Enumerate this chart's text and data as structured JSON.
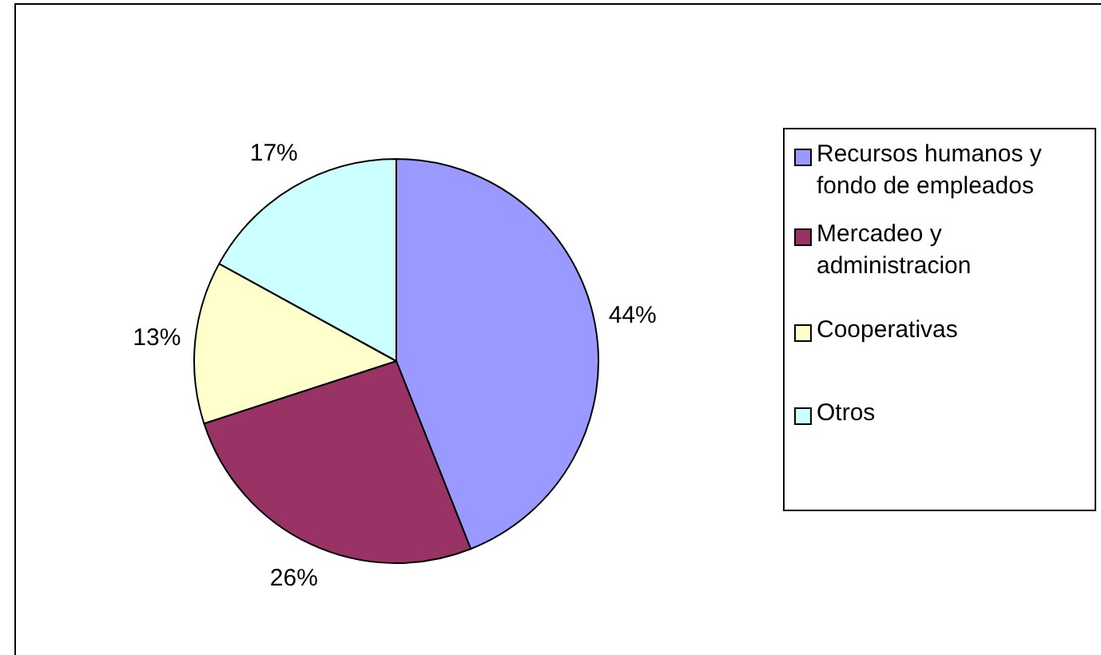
{
  "chart_data": {
    "type": "pie",
    "categories": [
      "Recursos humanos y fondo de empleados",
      "Mercadeo y administracion",
      "Cooperativas",
      "Otros"
    ],
    "values": [
      44,
      26,
      13,
      17
    ],
    "colors": [
      "#9999ff",
      "#993366",
      "#ffffcc",
      "#ccffff"
    ],
    "value_labels": [
      "44%",
      "26%",
      "13%",
      "17%"
    ],
    "legend": "right"
  }
}
